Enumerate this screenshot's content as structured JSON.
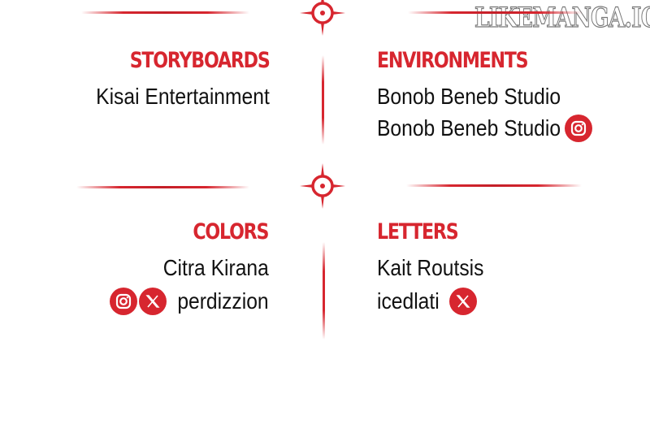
{
  "watermark": "LIKEMANGA.IO",
  "colors": {
    "accent": "#d7262f",
    "text": "#111111"
  },
  "credits": [
    {
      "role": "STORYBOARDS",
      "lines": [
        "Kisai Entertainment"
      ]
    },
    {
      "role": "ENVIRONMENTS",
      "lines": [
        "Bonob Beneb Studio",
        "Bonob Beneb Studio"
      ],
      "socials": [
        "instagram-icon"
      ]
    },
    {
      "role": "COLORS",
      "lines": [
        "Citra Kirana",
        "perdizzion"
      ],
      "socials": [
        "instagram-icon",
        "x-icon"
      ]
    },
    {
      "role": "LETTERS",
      "lines": [
        "Kait Routsis",
        "icedlati"
      ],
      "socials": [
        "x-icon"
      ]
    }
  ]
}
